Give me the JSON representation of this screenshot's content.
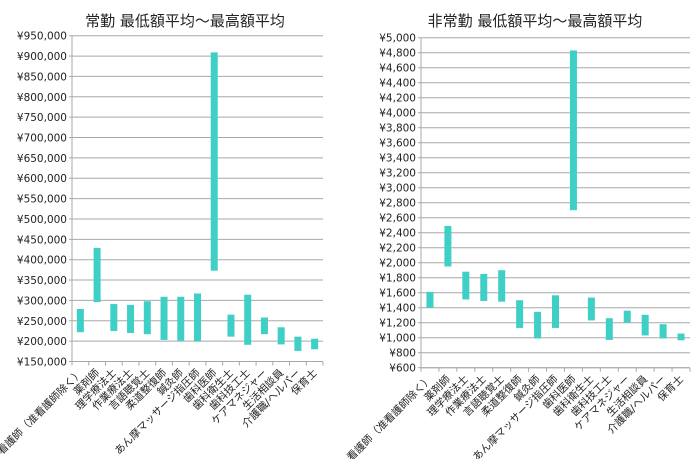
{
  "chart_data": [
    {
      "type": "bar",
      "subtype": "floating-range",
      "title": "常勤 最低額平均〜最高額平均",
      "categories": [
        "看護師（准看護師除く）",
        "薬剤師",
        "理学療法士",
        "作業療法士",
        "言語聴覚士",
        "柔道整復師",
        "鍼灸師",
        "あん摩マッサージ指圧師",
        "歯科医師",
        "歯科衛生士",
        "歯科技工士",
        "ケアマネジャー",
        "生活相談員",
        "介護職/ヘルパー",
        "保育士"
      ],
      "low": [
        222000,
        296000,
        225000,
        220000,
        217000,
        203000,
        201000,
        199000,
        373000,
        211000,
        191000,
        217000,
        192000,
        176000,
        180000
      ],
      "high": [
        279000,
        429000,
        291000,
        289000,
        298000,
        309000,
        309000,
        317000,
        909000,
        265000,
        314000,
        258000,
        234000,
        211000,
        206000
      ],
      "ylim": [
        150000,
        950000
      ],
      "ystep": 50000,
      "yprefix": "¥",
      "grid": true,
      "color": "#3ecfc6"
    },
    {
      "type": "bar",
      "subtype": "floating-range",
      "title": "非常勤 最低額平均〜最高額平均",
      "categories": [
        "看護師（准看護師除く）",
        "薬剤師",
        "理学療法士",
        "作業療法士",
        "言語聴覚士",
        "柔道整復師",
        "鍼灸師",
        "あん摩マッサージ指圧師",
        "歯科医師",
        "歯科衛生士",
        "歯科技工士",
        "ケアマネジャー",
        "生活相談員",
        "介護職/ヘルパー",
        "保育士"
      ],
      "low": [
        1400,
        1950,
        1510,
        1490,
        1480,
        1130,
        990,
        1130,
        2700,
        1230,
        970,
        1200,
        1030,
        990,
        965
      ],
      "high": [
        1610,
        2490,
        1880,
        1850,
        1900,
        1500,
        1345,
        1565,
        4830,
        1535,
        1260,
        1360,
        1305,
        1180,
        1055
      ],
      "ylim": [
        600,
        5000
      ],
      "ystep": 200,
      "yprefix": "¥",
      "grid": true,
      "color": "#3ecfc6"
    }
  ]
}
